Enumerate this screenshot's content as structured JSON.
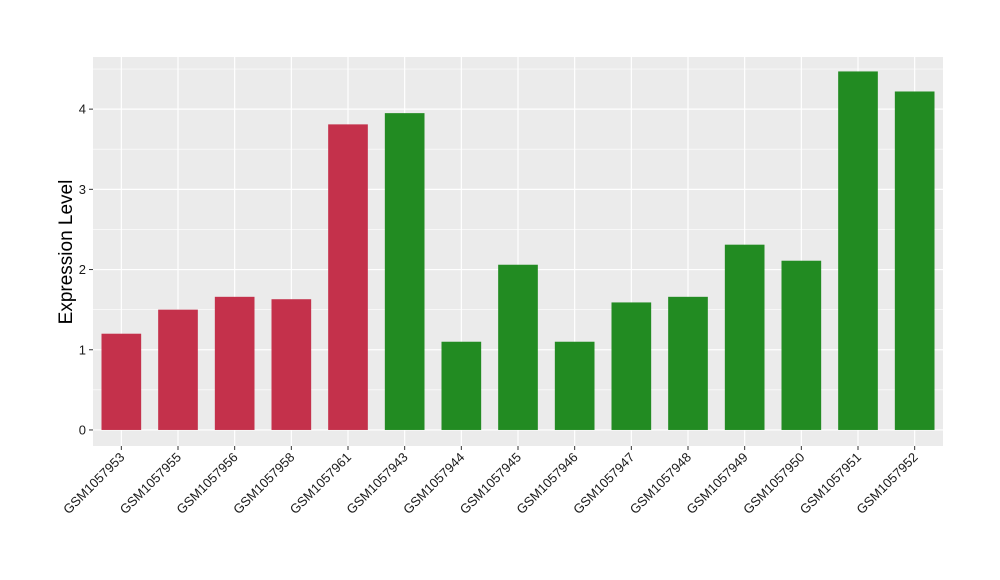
{
  "chart_data": {
    "type": "bar",
    "title": "",
    "xlabel": "",
    "ylabel": "Expression Level",
    "ylim": [
      -0.2,
      4.65
    ],
    "yticks": [
      0,
      1,
      2,
      3,
      4
    ],
    "grid": true,
    "legend": "none",
    "categories": [
      "GSM1057953",
      "GSM1057955",
      "GSM1057956",
      "GSM1057958",
      "GSM1057961",
      "GSM1057943",
      "GSM1057944",
      "GSM1057945",
      "GSM1057946",
      "GSM1057947",
      "GSM1057948",
      "GSM1057949",
      "GSM1057950",
      "GSM1057951",
      "GSM1057952"
    ],
    "values": [
      1.2,
      1.5,
      1.66,
      1.63,
      3.81,
      3.95,
      1.1,
      2.06,
      1.1,
      1.59,
      1.66,
      2.31,
      2.11,
      4.47,
      4.22
    ],
    "group_index": [
      0,
      0,
      0,
      0,
      0,
      1,
      1,
      1,
      1,
      1,
      1,
      1,
      1,
      1,
      1
    ],
    "group_colors": [
      "#c4314b",
      "#228b22"
    ]
  },
  "colors": {
    "panel_background": "#ebebeb",
    "gridline": "#ffffff"
  }
}
